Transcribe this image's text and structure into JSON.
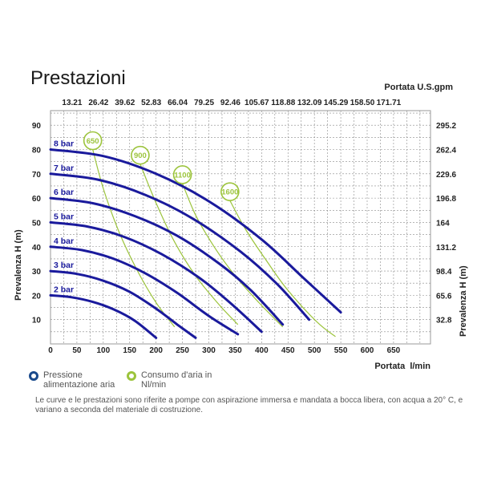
{
  "page": {
    "title": "Prestazioni"
  },
  "chart_data": {
    "type": "line",
    "xlabel": "Portata  l/min",
    "top_axis_label": "Portata U.S.gpm",
    "ylabel_left": "Prevalenza H (m)",
    "ylabel_right": "Prevalenza H (m)",
    "xlim": [
      0,
      720
    ],
    "ylim": [
      0,
      96
    ],
    "x_ticks": [
      "0",
      "50",
      "100",
      "150",
      "200",
      "250",
      "300",
      "350",
      "400",
      "450",
      "500",
      "550",
      "600",
      "650"
    ],
    "top_ticks": [
      "13.21",
      "26.42",
      "39.62",
      "52.83",
      "66.04",
      "79.25",
      "92.46",
      "105.67",
      "118.88",
      "132.09",
      "145.29",
      "158.50",
      "171.71"
    ],
    "y_ticks": [
      "10",
      "20",
      "30",
      "40",
      "50",
      "60",
      "70",
      "80",
      "90"
    ],
    "right_ticks": [
      "32.8",
      "65.6",
      "98.4",
      "131.2",
      "164",
      "196.8",
      "229.6",
      "262.4",
      "295.2"
    ],
    "grid": true,
    "pressure_color": "#1a1a9c",
    "air_color": "#9cc43c",
    "series": [
      {
        "name": "2 bar",
        "points": [
          [
            0,
            20
          ],
          [
            40,
            19.2
          ],
          [
            80,
            17.3
          ],
          [
            120,
            14.2
          ],
          [
            160,
            9.5
          ],
          [
            200,
            2.5
          ]
        ]
      },
      {
        "name": "3 bar",
        "points": [
          [
            0,
            30
          ],
          [
            50,
            28.8
          ],
          [
            100,
            26
          ],
          [
            150,
            21.4
          ],
          [
            200,
            14.5
          ],
          [
            240,
            8
          ],
          [
            275,
            2.5
          ]
        ]
      },
      {
        "name": "4 bar",
        "points": [
          [
            0,
            40
          ],
          [
            60,
            38.6
          ],
          [
            120,
            35
          ],
          [
            180,
            29
          ],
          [
            240,
            21
          ],
          [
            300,
            11.5
          ],
          [
            355,
            4
          ]
        ]
      },
      {
        "name": "5 bar",
        "points": [
          [
            0,
            50
          ],
          [
            70,
            48.3
          ],
          [
            140,
            44
          ],
          [
            210,
            37
          ],
          [
            280,
            27.5
          ],
          [
            340,
            17
          ],
          [
            400,
            5
          ]
        ]
      },
      {
        "name": "6 bar",
        "points": [
          [
            0,
            60
          ],
          [
            80,
            57.9
          ],
          [
            160,
            52.6
          ],
          [
            240,
            44.5
          ],
          [
            320,
            33
          ],
          [
            380,
            22
          ],
          [
            440,
            8
          ]
        ]
      },
      {
        "name": "7 bar",
        "points": [
          [
            0,
            70
          ],
          [
            90,
            67.6
          ],
          [
            180,
            61.3
          ],
          [
            270,
            51.5
          ],
          [
            360,
            38
          ],
          [
            430,
            24.5
          ],
          [
            490,
            10
          ]
        ]
      },
      {
        "name": "8 bar",
        "points": [
          [
            0,
            80
          ],
          [
            100,
            77.3
          ],
          [
            200,
            70
          ],
          [
            300,
            58.7
          ],
          [
            400,
            43
          ],
          [
            480,
            27
          ],
          [
            550,
            13
          ]
        ]
      }
    ],
    "air_series": [
      {
        "name": "650",
        "points": [
          [
            80,
            80
          ],
          [
            100,
            64
          ],
          [
            130,
            46
          ],
          [
            165,
            30
          ],
          [
            200,
            17
          ],
          [
            235,
            7
          ]
        ]
      },
      {
        "name": "900",
        "points": [
          [
            170,
            74
          ],
          [
            200,
            58
          ],
          [
            235,
            42
          ],
          [
            275,
            28
          ],
          [
            320,
            16
          ],
          [
            355,
            8
          ]
        ]
      },
      {
        "name": "1100",
        "points": [
          [
            250,
            66
          ],
          [
            275,
            53
          ],
          [
            310,
            40
          ],
          [
            350,
            28
          ],
          [
            395,
            17
          ],
          [
            440,
            7
          ]
        ]
      },
      {
        "name": "1600",
        "points": [
          [
            340,
            59
          ],
          [
            370,
            47
          ],
          [
            410,
            34
          ],
          [
            450,
            22
          ],
          [
            505,
            9
          ],
          [
            540,
            3
          ]
        ]
      }
    ]
  },
  "legend": {
    "pressure_label": "Pressione alimentazione aria",
    "air_label": "Consumo d'aria in Nl/min"
  },
  "note": "Le curve e le prestazioni sono riferite a pompe con aspirazione immersa e mandata a bocca libera, con acqua a 20° C, e variano a seconda del materiale di costruzione."
}
